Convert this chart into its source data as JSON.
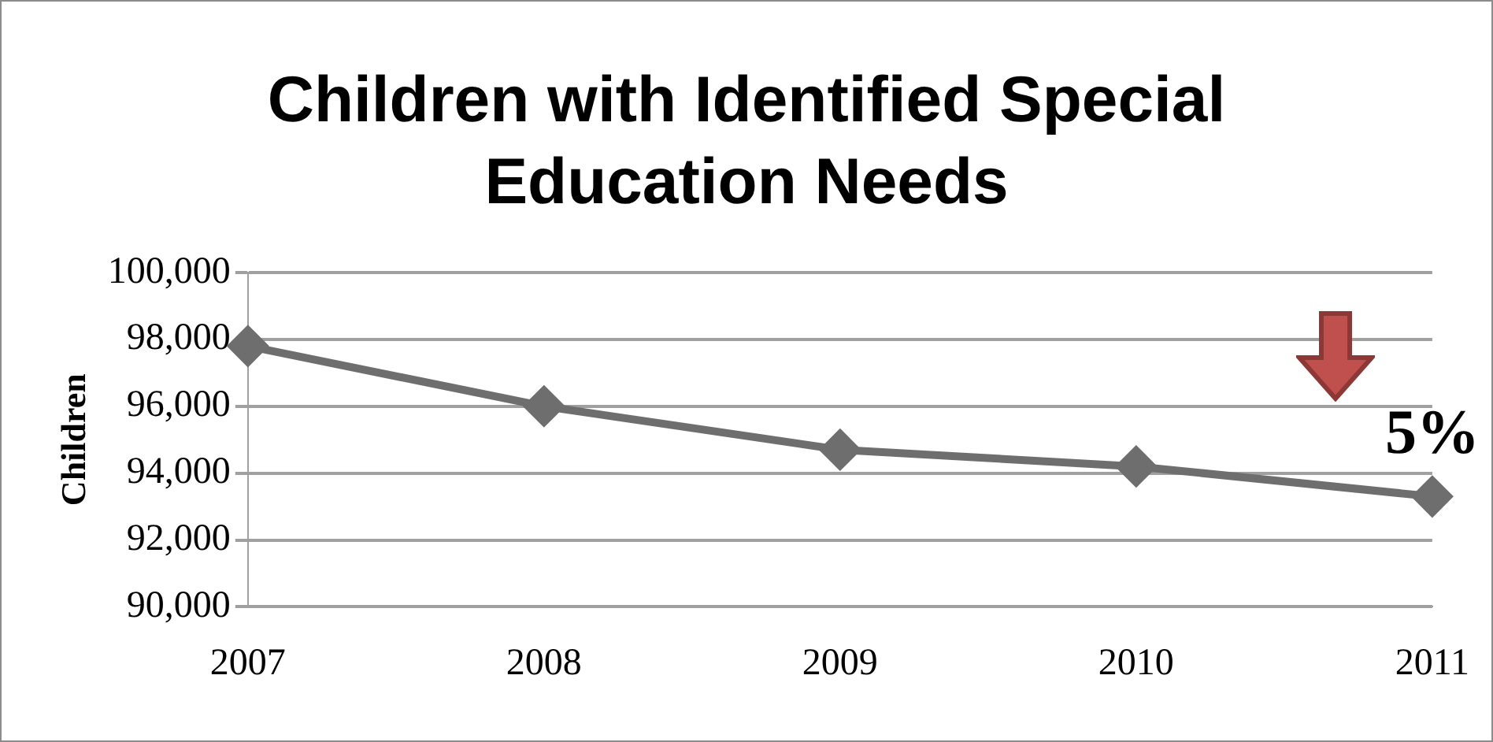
{
  "chart_data": {
    "type": "line",
    "title": "Children with Identified Special Education Needs",
    "ylabel": "Children",
    "categories": [
      "2007",
      "2008",
      "2009",
      "2010",
      "2011"
    ],
    "series": [
      {
        "color": "#6e6e6e",
        "values": [
          97800,
          96000,
          94700,
          94200,
          93300
        ]
      }
    ],
    "ylim": [
      90000,
      100000
    ],
    "yticks": [
      {
        "value": 90000,
        "label": "90,000"
      },
      {
        "value": 92000,
        "label": "92,000"
      },
      {
        "value": 94000,
        "label": "94,000"
      },
      {
        "value": 96000,
        "label": "96,000"
      },
      {
        "value": 98000,
        "label": "98,000"
      },
      {
        "value": 100000,
        "label": "100,000"
      }
    ],
    "grid": "y",
    "legend": false,
    "marker": "diamond",
    "line_style": "solid",
    "annotations": [
      "5%"
    ]
  }
}
